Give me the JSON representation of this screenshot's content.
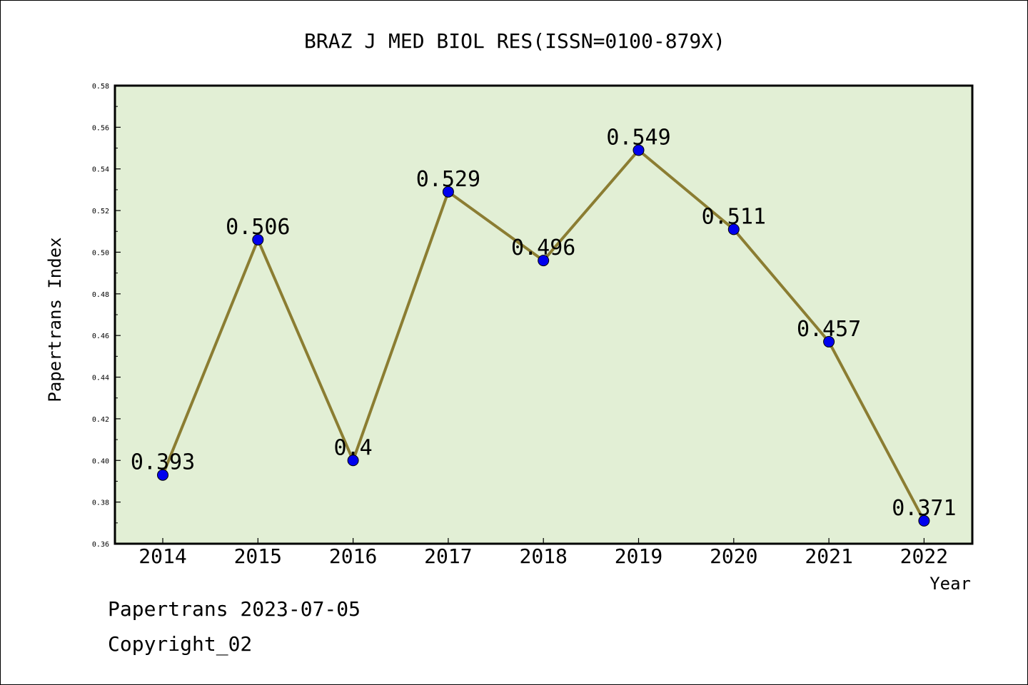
{
  "chart_data": {
    "type": "line",
    "title": "BRAZ J MED BIOL RES(ISSN=0100-879X)",
    "xlabel": "Year",
    "ylabel": "Papertrans Index",
    "categories": [
      "2014",
      "2015",
      "2016",
      "2017",
      "2018",
      "2019",
      "2020",
      "2021",
      "2022"
    ],
    "series": [
      {
        "values": [
          0.393,
          0.506,
          0.4,
          0.529,
          0.496,
          0.549,
          0.511,
          0.457,
          0.371
        ],
        "labels": [
          "0.393",
          "0.506",
          "0.4",
          "0.529",
          "0.496",
          "0.549",
          "0.511",
          "0.457",
          "0.371"
        ]
      }
    ],
    "ylim": [
      0.36,
      0.58
    ],
    "yticks": [
      "0.36",
      "0.38",
      "0.40",
      "0.42",
      "0.44",
      "0.46",
      "0.48",
      "0.50",
      "0.52",
      "0.54",
      "0.56",
      "0.58"
    ],
    "grid": false,
    "colors": {
      "plot_background": "#e2efd5",
      "line": "#8b7d32",
      "marker": "#0000ee",
      "frame": "#000000"
    }
  },
  "footer": {
    "date_text": "Papertrans 2023-07-05",
    "copyright_text": "Copyright_02"
  }
}
